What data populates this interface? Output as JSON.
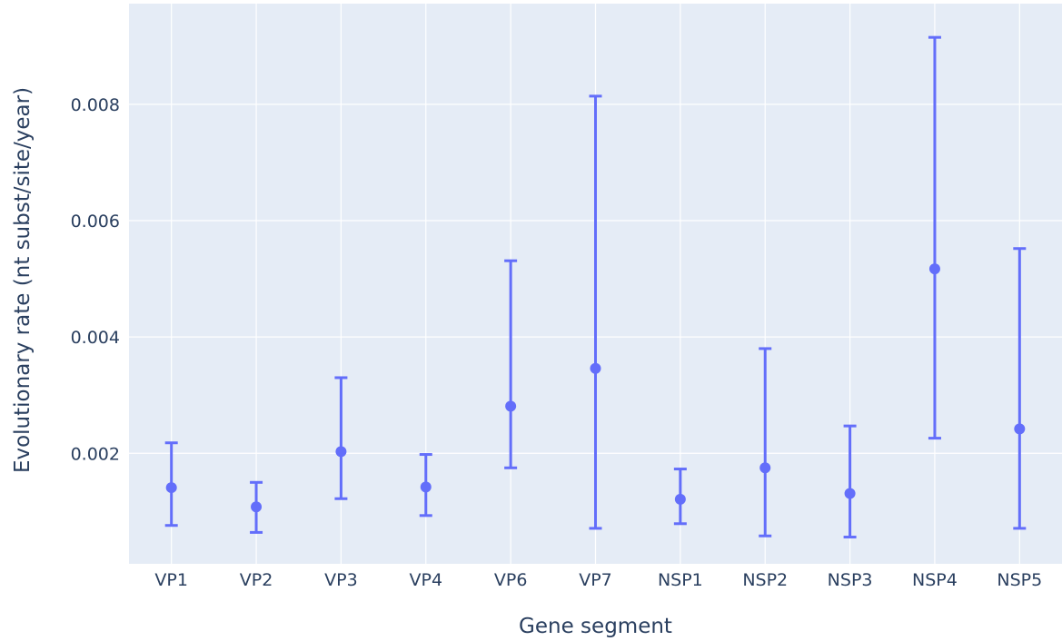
{
  "chart_data": {
    "type": "scatter",
    "title": "",
    "xlabel": "Gene segment",
    "ylabel": "Evolutionary rate (nt subst/site/year)",
    "categories": [
      "VP1",
      "VP2",
      "VP3",
      "VP4",
      "VP6",
      "VP7",
      "NSP1",
      "NSP2",
      "NSP3",
      "NSP4",
      "NSP5"
    ],
    "values": [
      0.00141,
      0.00108,
      0.00203,
      0.00142,
      0.00281,
      0.00346,
      0.00121,
      0.00175,
      0.00131,
      0.00517,
      0.00242
    ],
    "error_lower": [
      0.00076,
      0.00064,
      0.00122,
      0.00093,
      0.00175,
      0.00071,
      0.00079,
      0.00058,
      0.00056,
      0.00226,
      0.00071
    ],
    "error_upper": [
      0.00218,
      0.0015,
      0.0033,
      0.00198,
      0.00531,
      0.00814,
      0.00173,
      0.0038,
      0.00247,
      0.00915,
      0.00552
    ],
    "ylim": [
      0.0001,
      0.00973
    ],
    "yticks": [
      0.002,
      0.004,
      0.006,
      0.008
    ],
    "ytick_labels": [
      "0.002",
      "0.004",
      "0.006",
      "0.008"
    ],
    "grid": true,
    "colors": {
      "marker": "#636efa",
      "plot_bg": "#e5ecf6",
      "grid": "#ffffff",
      "text": "#2a3f5f"
    }
  }
}
